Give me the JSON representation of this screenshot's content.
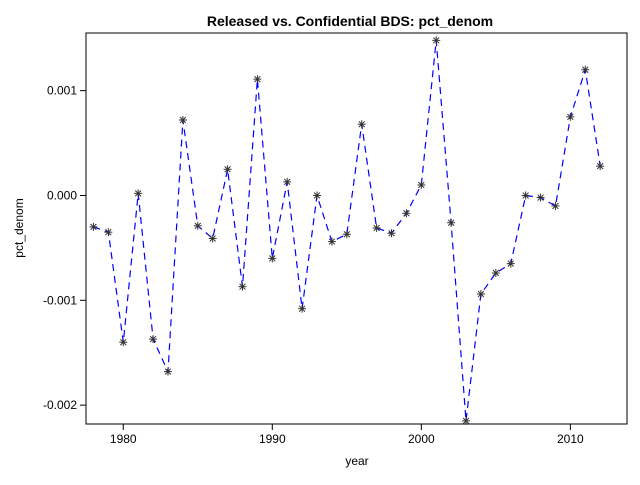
{
  "chart_data": {
    "type": "line",
    "title": "Released vs. Confidential BDS: pct_denom",
    "xlabel": "year",
    "ylabel": "pct_denom",
    "xlim": [
      1977.5,
      2013.8
    ],
    "ylim": [
      -0.00218,
      0.00155
    ],
    "xticks": [
      1980,
      1990,
      2000,
      2010
    ],
    "xtick_labels": [
      "1980",
      "1990",
      "2000",
      "2010"
    ],
    "yticks": [
      -0.002,
      -0.001,
      0.0,
      0.001
    ],
    "ytick_labels": [
      "-0.002",
      "-0.001",
      "0.000",
      "0.001"
    ],
    "grid": false,
    "legend": "none",
    "series": [
      {
        "color": "#0000ff",
        "line_style": "dashed",
        "marker": "asterisk",
        "marker_color": "#333333",
        "x": [
          1978,
          1979,
          1980,
          1981,
          1982,
          1983,
          1984,
          1985,
          1986,
          1987,
          1988,
          1989,
          1990,
          1991,
          1992,
          1993,
          1994,
          1995,
          1996,
          1997,
          1998,
          1999,
          2000,
          2001,
          2002,
          2003,
          2004,
          2005,
          2006,
          2007,
          2008,
          2009,
          2010,
          2011,
          2012
        ],
        "y": [
          -0.0003,
          -0.00035,
          -0.0014,
          2e-05,
          -0.00137,
          -0.00168,
          0.00072,
          -0.00029,
          -0.00041,
          0.00025,
          -0.00087,
          0.00111,
          -0.0006,
          0.00013,
          -0.00108,
          0.0,
          -0.00044,
          -0.00037,
          0.00068,
          -0.00031,
          -0.00036,
          -0.00017,
          0.0001,
          0.00148,
          -0.00026,
          -0.00215,
          -0.00094,
          -0.00074,
          -0.00065,
          0.0,
          -2e-05,
          -0.0001,
          0.00075,
          0.0012,
          0.00028
        ]
      }
    ]
  }
}
